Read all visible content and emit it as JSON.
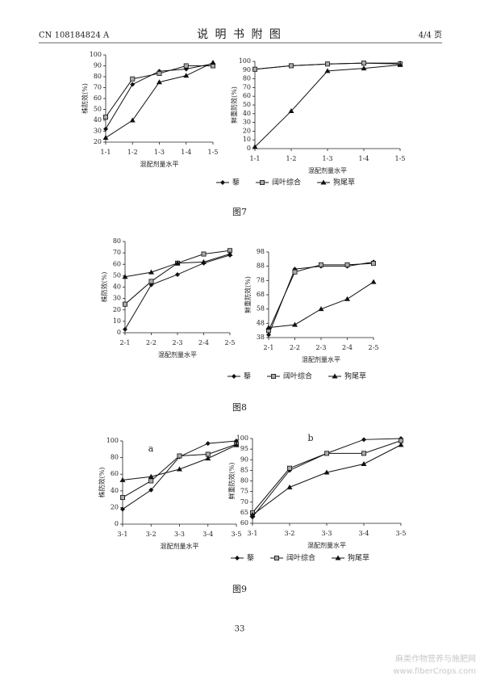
{
  "header": {
    "code": "CN 108184824 A",
    "title": "说 明 书 附 图",
    "page": "4/4 页"
  },
  "captions": [
    "图7",
    "图8",
    "图9"
  ],
  "page_number": "33",
  "watermark": [
    "麻类作物营养与施肥网",
    "www.fiberCrops.com"
  ],
  "chart_data": [
    {
      "type": "line",
      "x_label": "混配剂量水平",
      "y_label": "株防效(%)",
      "categories": [
        "1-1",
        "1-2",
        "1-3",
        "1-4",
        "1-5"
      ],
      "ylim": [
        20,
        100
      ],
      "yticks": [
        20,
        30,
        40,
        50,
        60,
        70,
        80,
        90,
        100
      ],
      "series": [
        {
          "name": "藜",
          "color": "#111111",
          "marker": "diamond",
          "values": [
            32,
            73,
            85,
            87,
            92
          ]
        },
        {
          "name": "阔叶综合",
          "color": "#111111",
          "marker": "square",
          "values": [
            43,
            78,
            83,
            90,
            90
          ]
        },
        {
          "name": "狗尾草",
          "color": "#111111",
          "marker": "triangle",
          "values": [
            24,
            40,
            75,
            81,
            93
          ]
        }
      ]
    },
    {
      "type": "line",
      "x_label": "混配剂量水平",
      "y_label": "鲜重防效(%)",
      "categories": [
        "1-1",
        "1-2",
        "1-3",
        "1-4",
        "1-5"
      ],
      "ylim": [
        0,
        100
      ],
      "yticks": [
        0,
        10,
        20,
        30,
        40,
        50,
        60,
        70,
        80,
        90,
        100
      ],
      "series": [
        {
          "color": "#111111",
          "marker": "diamond",
          "values": [
            91,
            95,
            97,
            98,
            98
          ]
        },
        {
          "color": "#111111",
          "marker": "square",
          "values": [
            91,
            95,
            97,
            98,
            97
          ]
        },
        {
          "color": "#111111",
          "marker": "triangle",
          "values": [
            2,
            43,
            89,
            92,
            96
          ]
        }
      ]
    },
    {
      "type": "line",
      "x_label": "混配剂量水平",
      "y_label": "株防效(%)",
      "categories": [
        "2-1",
        "2-2",
        "2-3",
        "2-4",
        "2-5"
      ],
      "ylim": [
        0,
        80
      ],
      "yticks": [
        0,
        10,
        20,
        30,
        40,
        50,
        60,
        70,
        80
      ],
      "series": [
        {
          "name": "藜",
          "color": "#111111",
          "marker": "diamond",
          "values": [
            3,
            42,
            51,
            61,
            68
          ]
        },
        {
          "name": "阔叶综合",
          "color": "#111111",
          "marker": "square",
          "values": [
            25,
            45,
            61,
            69,
            72
          ]
        },
        {
          "name": "狗尾草",
          "color": "#111111",
          "marker": "triangle",
          "values": [
            49,
            53,
            61,
            62,
            69
          ]
        }
      ]
    },
    {
      "type": "line",
      "x_label": "混配剂量水平",
      "y_label": "鲜重防效(%)",
      "categories": [
        "2-1",
        "2-2",
        "2-3",
        "2-4",
        "2-5"
      ],
      "ylim": [
        38,
        98
      ],
      "yticks": [
        38,
        48,
        58,
        68,
        78,
        88,
        98
      ],
      "series": [
        {
          "color": "#111111",
          "marker": "diamond",
          "values": [
            40,
            86,
            88,
            88,
            91
          ]
        },
        {
          "color": "#111111",
          "marker": "square",
          "values": [
            43,
            84,
            89,
            89,
            90
          ]
        },
        {
          "color": "#111111",
          "marker": "triangle",
          "values": [
            45,
            47,
            58,
            65,
            77
          ]
        }
      ]
    },
    {
      "type": "line",
      "x_label": "混配剂量水平",
      "y_label": "株防效(%)",
      "annotation": "a",
      "categories": [
        "3-1",
        "3-2",
        "3-3",
        "3-4",
        "3-5"
      ],
      "ylim": [
        0,
        100
      ],
      "yticks": [
        0,
        20,
        40,
        60,
        80,
        100
      ],
      "series": [
        {
          "name": "藜",
          "color": "#111111",
          "marker": "diamond",
          "values": [
            18,
            41,
            81,
            97,
            100
          ]
        },
        {
          "name": "阔叶综合",
          "color": "#111111",
          "marker": "square",
          "values": [
            32,
            52,
            82,
            84,
            96
          ]
        },
        {
          "name": "狗尾草",
          "color": "#111111",
          "marker": "triangle",
          "values": [
            53,
            57,
            66,
            79,
            95
          ]
        }
      ]
    },
    {
      "type": "line",
      "x_label": "混配剂量水平",
      "y_label": "鲜重防效(%)",
      "annotation": "b",
      "categories": [
        "3-1",
        "3-2",
        "3-3",
        "3-4",
        "3-5"
      ],
      "ylim": [
        60,
        100
      ],
      "yticks": [
        60,
        65,
        70,
        75,
        80,
        85,
        90,
        95,
        100
      ],
      "series": [
        {
          "color": "#111111",
          "marker": "diamond",
          "values": [
            63,
            85,
            93,
            99.5,
            100
          ]
        },
        {
          "color": "#111111",
          "marker": "square",
          "values": [
            65,
            86,
            93,
            93,
            99
          ]
        },
        {
          "color": "#111111",
          "marker": "triangle",
          "values": [
            64,
            77,
            84,
            88,
            97
          ]
        }
      ]
    }
  ]
}
